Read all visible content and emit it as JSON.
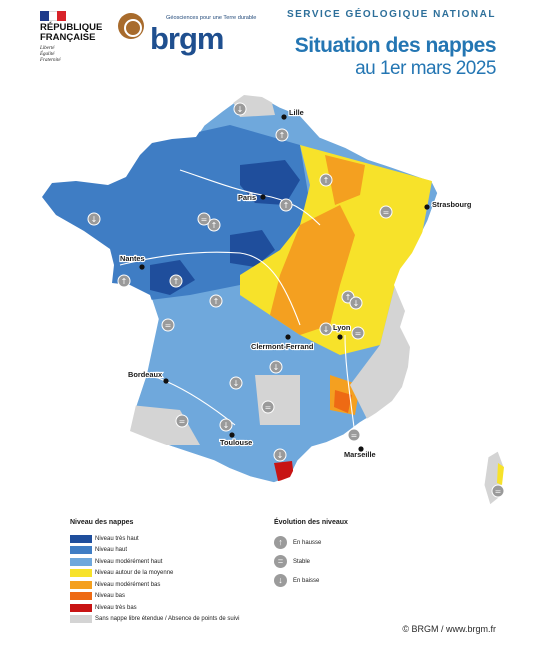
{
  "header": {
    "republique": "RÉPUBLIQUE\nFRANÇAISE",
    "motto": "Liberté\nÉgalité\nFraternité",
    "brgm_tagline": "Géosciences pour une Terre durable",
    "brgm_word": "brgm",
    "service": "SERVICE GÉOLOGIQUE NATIONAL",
    "title": "Situation des nappes",
    "subtitle": "au 1er mars 2025"
  },
  "colors": {
    "tres_haut": "#1f4e9c",
    "haut": "#3f7dc4",
    "moderement_haut": "#6fa8dc",
    "moyenne": "#f7e22a",
    "moderement_bas": "#f4a020",
    "bas": "#ee6a14",
    "tres_bas": "#c81414",
    "no_data": "#d4d4d4",
    "brand_blue": "#2476b3"
  },
  "cities": [
    {
      "name": "Lille"
    },
    {
      "name": "Paris"
    },
    {
      "name": "Strasbourg"
    },
    {
      "name": "Nantes"
    },
    {
      "name": "Lyon"
    },
    {
      "name": "Clermont-Ferrand"
    },
    {
      "name": "Bordeaux"
    },
    {
      "name": "Toulouse"
    },
    {
      "name": "Marseille"
    }
  ],
  "legend": {
    "title": "Niveau des nappes",
    "items": [
      {
        "label": "Niveau très haut",
        "color": "#1f4e9c"
      },
      {
        "label": "Niveau haut",
        "color": "#3f7dc4"
      },
      {
        "label": "Niveau modérément haut",
        "color": "#6fa8dc"
      },
      {
        "label": "Niveau autour de la moyenne",
        "color": "#f7e22a"
      },
      {
        "label": "Niveau modérément bas",
        "color": "#f4a020"
      },
      {
        "label": "Niveau bas",
        "color": "#ee6a14"
      },
      {
        "label": "Niveau très bas",
        "color": "#c81414"
      },
      {
        "label": "Sans nappe libre étendue / Absence de points de suivi",
        "color": "#d4d4d4"
      }
    ]
  },
  "evolution": {
    "title": "Évolution des niveaux",
    "items": [
      {
        "label": "En hausse",
        "icon": "arrow-up-icon",
        "glyph": "↑"
      },
      {
        "label": "Stable",
        "icon": "equals-icon",
        "glyph": "="
      },
      {
        "label": "En baisse",
        "icon": "arrow-down-icon",
        "glyph": "↓"
      }
    ]
  },
  "credit": "© BRGM / www.brgm.fr"
}
